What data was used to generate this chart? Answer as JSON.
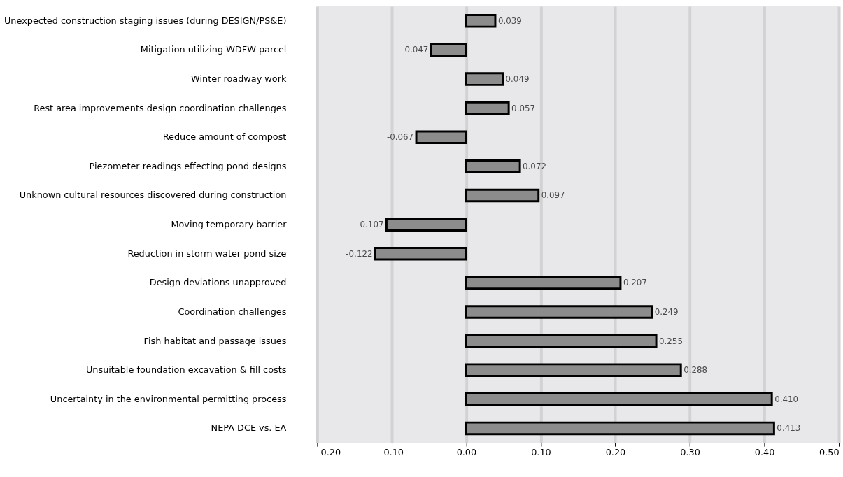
{
  "chart_data": {
    "type": "bar",
    "orientation": "horizontal",
    "categories": [
      "Unexpected construction staging issues (during DESIGN/PS&E)",
      "Mitigation utilizing WDFW parcel",
      "Winter roadway work",
      "Rest area improvements design coordination challenges",
      "Reduce amount of compost",
      "Piezometer readings effecting pond designs",
      "Unknown cultural resources discovered during construction",
      "Moving temporary barrier",
      "Reduction in storm water pond size",
      "Design deviations unapproved",
      "Coordination challenges",
      "Fish habitat and passage issues",
      "Unsuitable foundation excavation & fill costs",
      "Uncertainty in the environmental permitting process",
      "NEPA DCE vs. EA"
    ],
    "values": [
      0.039,
      -0.047,
      0.049,
      0.057,
      -0.067,
      0.072,
      0.097,
      -0.107,
      -0.122,
      0.207,
      0.249,
      0.255,
      0.288,
      0.41,
      0.413
    ],
    "value_labels": [
      "0.039",
      "-0.047",
      "0.049",
      "0.057",
      "-0.067",
      "0.072",
      "0.097",
      "-0.107",
      "-0.122",
      "0.207",
      "0.249",
      "0.255",
      "0.288",
      "0.410",
      "0.413"
    ],
    "color": "#8c8c8c",
    "xlim": [
      -0.2,
      0.5
    ],
    "xticks": [
      {
        "value": -0.2,
        "label": "-0.20"
      },
      {
        "value": -0.1,
        "label": "-0.10"
      },
      {
        "value": 0,
        "label": "0.00"
      },
      {
        "value": 0.1,
        "label": "0.10"
      },
      {
        "value": 0.2,
        "label": "0.20"
      },
      {
        "value": 0.3,
        "label": "0.30"
      },
      {
        "value": 0.4,
        "label": "0.40"
      },
      {
        "value": 0.5,
        "label": "0.50"
      }
    ],
    "grid": "x"
  }
}
